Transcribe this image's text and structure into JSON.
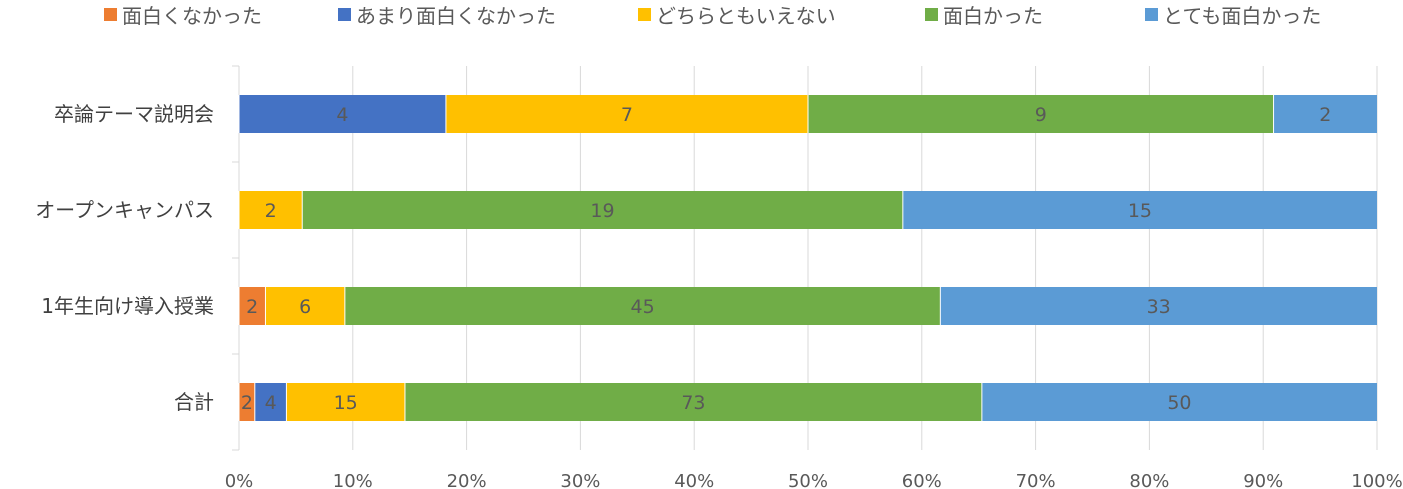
{
  "chart_data": {
    "type": "bar",
    "orientation": "horizontal",
    "stacked": "percent",
    "categories": [
      "卒論テーマ説明会",
      "オープンキャンパス",
      "1年生向け導入授業",
      "合計"
    ],
    "series": [
      {
        "name": "面白くなかった",
        "color": "#ED7D31",
        "values": [
          0,
          0,
          2,
          2
        ]
      },
      {
        "name": "あまり面白くなかった",
        "color": "#4472C4",
        "values": [
          4,
          0,
          0,
          4
        ]
      },
      {
        "name": "どちらともいえない",
        "color": "#FFC000",
        "values": [
          7,
          2,
          6,
          15
        ]
      },
      {
        "name": "面白かった",
        "color": "#70AD47",
        "values": [
          9,
          19,
          45,
          73
        ]
      },
      {
        "name": "とても面白かった",
        "color": "#5B9BD5",
        "values": [
          2,
          15,
          33,
          50
        ]
      }
    ],
    "x_ticks": [
      "0%",
      "10%",
      "20%",
      "30%",
      "40%",
      "50%",
      "60%",
      "70%",
      "80%",
      "90%",
      "100%"
    ],
    "xlim": [
      0,
      100
    ],
    "grid": true,
    "legend_position": "top",
    "data_labels": true
  }
}
